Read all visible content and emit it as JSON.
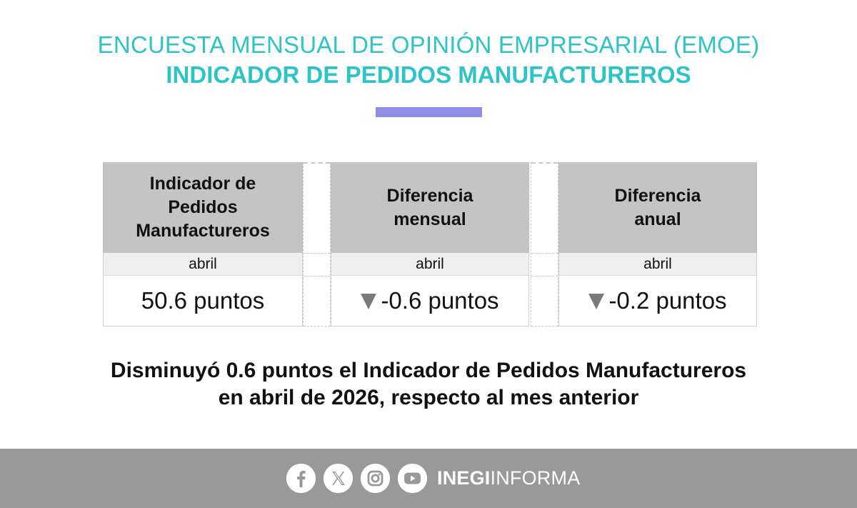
{
  "header": {
    "title_line1": "ENCUESTA MENSUAL DE OPINIÓN EMPRESARIAL (EMOE)",
    "title_line2": "INDICADOR DE PEDIDOS MANUFACTUREROS",
    "accent_color": "#2ec4c6",
    "bar_color": "#8e8ee6"
  },
  "table": {
    "columns": [
      {
        "header": [
          "Indicador de",
          "Pedidos",
          "Manufactureros"
        ],
        "period": "abril",
        "value": "50.6 puntos",
        "trend": ""
      },
      {
        "header": [
          "Diferencia",
          "mensual"
        ],
        "period": "abril",
        "value": "-0.6 puntos",
        "trend": "down-triangle-icon"
      },
      {
        "header": [
          "Diferencia",
          "anual"
        ],
        "period": "abril",
        "value": "-0.2 puntos",
        "trend": "down-triangle-icon"
      }
    ]
  },
  "summary": {
    "line1": "Disminuyó 0.6 puntos el Indicador de Pedidos Manufactureros",
    "line2": "en abril de 2026, respecto al mes anterior"
  },
  "footer": {
    "icons": [
      "facebook-icon",
      "x-icon",
      "instagram-icon",
      "youtube-icon"
    ],
    "brand_bold": "INEGI",
    "brand_regular": "INFORMA",
    "background": "#999999"
  }
}
